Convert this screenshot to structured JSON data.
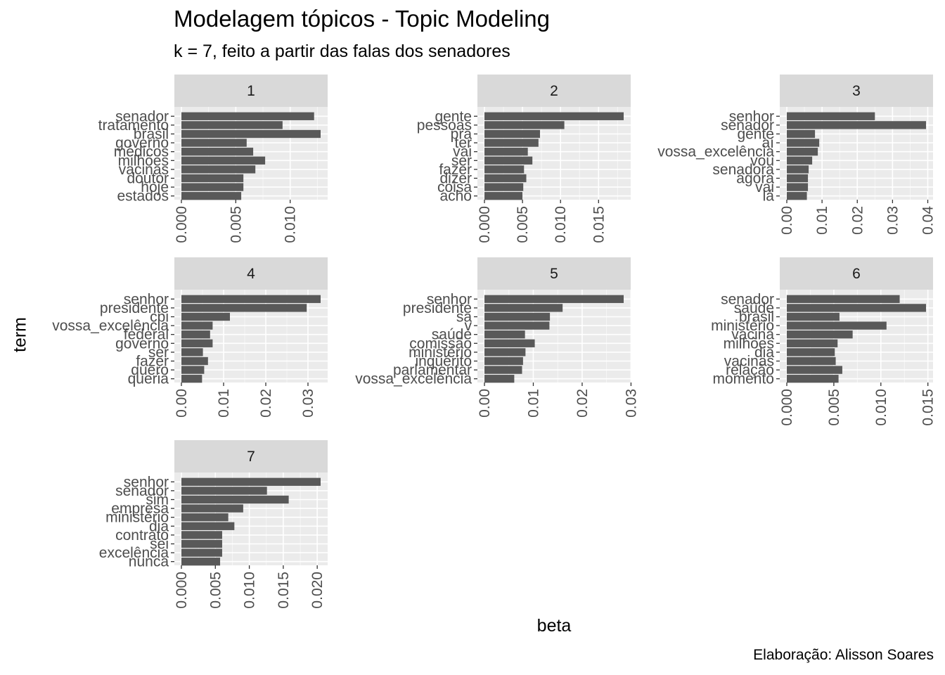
{
  "chart_data": {
    "type": "bar",
    "orientation": "horizontal",
    "title": "Modelagem tópicos - Topic Modeling",
    "subtitle": "k = 7, feito a partir das falas dos senadores",
    "xlabel": "beta",
    "ylabel": "term",
    "caption": "Elaboração: Alisson Soares",
    "grid": true,
    "panels": [
      {
        "label": "1",
        "xlim": [
          0,
          0.0128
        ],
        "ticks": [
          0,
          0.005,
          0.01
        ],
        "tick_labels": [
          "0.000",
          "0.005",
          "0.010"
        ],
        "terms": [
          "senador",
          "tratamento",
          "brasil",
          "governo",
          "médicos",
          "milhões",
          "vacinas",
          "doutor",
          "hoje",
          "estados"
        ],
        "values": [
          0.0122,
          0.0093,
          0.0128,
          0.006,
          0.0066,
          0.0077,
          0.0068,
          0.0057,
          0.0057,
          0.0055
        ]
      },
      {
        "label": "2",
        "xlim": [
          0,
          0.0183
        ],
        "ticks": [
          0,
          0.005,
          0.01,
          0.015
        ],
        "tick_labels": [
          "0.000",
          "0.005",
          "0.010",
          "0.015"
        ],
        "terms": [
          "gente",
          "pessoas",
          "pra",
          "ter",
          "vai",
          "ser",
          "fazer",
          "dizer",
          "coisa",
          "acho"
        ],
        "values": [
          0.0183,
          0.0105,
          0.0073,
          0.0071,
          0.0057,
          0.0063,
          0.0052,
          0.0055,
          0.0051,
          0.005
        ]
      },
      {
        "label": "3",
        "xlim": [
          0,
          0.0395
        ],
        "ticks": [
          0,
          0.01,
          0.02,
          0.03,
          0.04
        ],
        "tick_labels": [
          "0.00",
          "0.01",
          "0.02",
          "0.03",
          "0.04"
        ],
        "terms": [
          "senhor",
          "senador",
          "gente",
          "aí",
          "vossa_excelência",
          "vou",
          "senadora",
          "agora",
          "vai",
          "lá"
        ],
        "values": [
          0.025,
          0.0395,
          0.008,
          0.0092,
          0.0088,
          0.0072,
          0.0062,
          0.006,
          0.006,
          0.0057
        ]
      },
      {
        "label": "4",
        "xlim": [
          0,
          0.033
        ],
        "ticks": [
          0,
          0.01,
          0.02,
          0.03
        ],
        "tick_labels": [
          "0.00",
          "0.01",
          "0.02",
          "0.03"
        ],
        "terms": [
          "senhor",
          "presidente",
          "cpi",
          "vossa_excelência",
          "federal",
          "governo",
          "ser",
          "fazer",
          "quero",
          "queria"
        ],
        "values": [
          0.033,
          0.0297,
          0.0115,
          0.0074,
          0.0068,
          0.0074,
          0.0051,
          0.0063,
          0.0054,
          0.0049
        ]
      },
      {
        "label": "5",
        "xlim": [
          0,
          0.0285
        ],
        "ticks": [
          0,
          0.01,
          0.02,
          0.03
        ],
        "tick_labels": [
          "0.00",
          "0.01",
          "0.02",
          "0.03"
        ],
        "terms": [
          "senhor",
          "presidente",
          "sa",
          "v",
          "saúde",
          "comissão",
          "ministério",
          "inquérito",
          "parlamentar",
          "vossa_excelência"
        ],
        "values": [
          0.0285,
          0.016,
          0.0134,
          0.0133,
          0.0083,
          0.0103,
          0.0084,
          0.0079,
          0.0077,
          0.0061
        ]
      },
      {
        "label": "6",
        "xlim": [
          0,
          0.0148
        ],
        "ticks": [
          0,
          0.005,
          0.01,
          0.015
        ],
        "tick_labels": [
          "0.000",
          "0.005",
          "0.010",
          "0.015"
        ],
        "terms": [
          "senador",
          "saúde",
          "brasil",
          "ministério",
          "vacina",
          "milhões",
          "dia",
          "vacinas",
          "relação",
          "momento"
        ],
        "values": [
          0.012,
          0.0148,
          0.0056,
          0.0106,
          0.007,
          0.0054,
          0.0051,
          0.0052,
          0.0059,
          0.0055
        ]
      },
      {
        "label": "7",
        "xlim": [
          0,
          0.0205
        ],
        "ticks": [
          0,
          0.005,
          0.01,
          0.015,
          0.02
        ],
        "tick_labels": [
          "0.000",
          "0.005",
          "0.010",
          "0.015",
          "0.020"
        ],
        "terms": [
          "senhor",
          "senador",
          "sim",
          "empresa",
          "ministério",
          "dia",
          "contrato",
          "sei",
          "excelência",
          "nunca"
        ],
        "values": [
          0.0205,
          0.0126,
          0.0158,
          0.0091,
          0.0069,
          0.0078,
          0.006,
          0.006,
          0.006,
          0.0057
        ]
      }
    ]
  },
  "colors": {
    "bar": "#595959",
    "panel_background": "#ebebeb",
    "strip_background": "#d9d9d9",
    "grid_major": "#ffffff",
    "axis_text": "#4d4d4d"
  }
}
